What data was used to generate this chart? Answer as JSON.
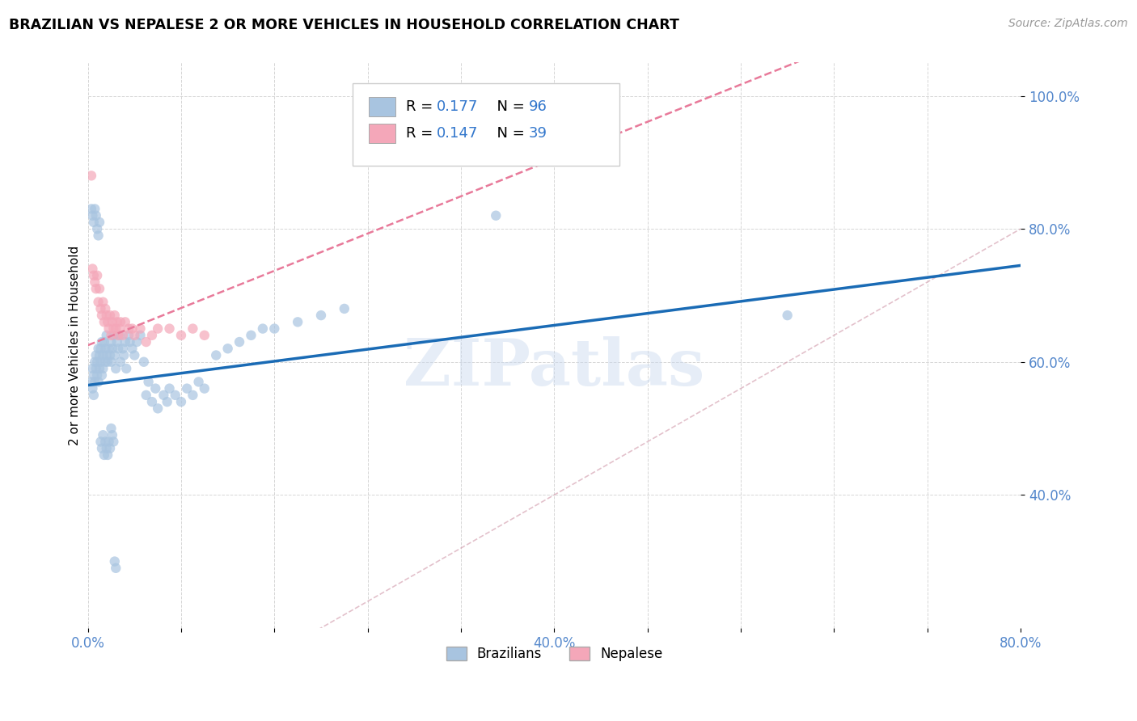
{
  "title": "BRAZILIAN VS NEPALESE 2 OR MORE VEHICLES IN HOUSEHOLD CORRELATION CHART",
  "source": "Source: ZipAtlas.com",
  "ylabel": "2 or more Vehicles in Household",
  "xlim": [
    0.0,
    0.8
  ],
  "ylim": [
    0.2,
    1.05
  ],
  "ytick_labels": [
    "40.0%",
    "60.0%",
    "80.0%",
    "100.0%"
  ],
  "ytick_values": [
    0.4,
    0.6,
    0.8,
    1.0
  ],
  "xtick_values": [
    0.0,
    0.08,
    0.16,
    0.24,
    0.32,
    0.4,
    0.48,
    0.56,
    0.64,
    0.72,
    0.8
  ],
  "color_brazilian": "#a8c4e0",
  "color_nepalese": "#f4a7b9",
  "color_line_brazilian": "#1a6bb5",
  "color_line_nepalese": "#e87a9a",
  "color_diag": "#d4a0b0",
  "watermark": "ZIPatlas",
  "braz_line_x0": 0.0,
  "braz_line_x1": 0.8,
  "braz_line_y0": 0.565,
  "braz_line_y1": 0.745,
  "nep_line_x0": 0.0,
  "nep_line_x1": 0.1,
  "nep_line_y0": 0.625,
  "nep_line_y1": 0.695,
  "brazilian_x": [
    0.003,
    0.004,
    0.004,
    0.005,
    0.005,
    0.006,
    0.006,
    0.007,
    0.007,
    0.008,
    0.008,
    0.009,
    0.009,
    0.01,
    0.01,
    0.011,
    0.011,
    0.012,
    0.012,
    0.013,
    0.013,
    0.014,
    0.015,
    0.015,
    0.016,
    0.016,
    0.017,
    0.018,
    0.019,
    0.02,
    0.02,
    0.021,
    0.022,
    0.023,
    0.024,
    0.025,
    0.026,
    0.027,
    0.028,
    0.03,
    0.031,
    0.032,
    0.033,
    0.035,
    0.036,
    0.038,
    0.04,
    0.042,
    0.045,
    0.048,
    0.05,
    0.052,
    0.055,
    0.058,
    0.06,
    0.065,
    0.068,
    0.07,
    0.075,
    0.08,
    0.085,
    0.09,
    0.095,
    0.1,
    0.11,
    0.12,
    0.13,
    0.14,
    0.15,
    0.16,
    0.18,
    0.2,
    0.22,
    0.35,
    0.6,
    0.003,
    0.004,
    0.005,
    0.006,
    0.007,
    0.008,
    0.009,
    0.01,
    0.011,
    0.012,
    0.013,
    0.014,
    0.015,
    0.016,
    0.017,
    0.018,
    0.019,
    0.02,
    0.021,
    0.022,
    0.023,
    0.024
  ],
  "brazilian_y": [
    0.57,
    0.56,
    0.59,
    0.55,
    0.58,
    0.6,
    0.57,
    0.59,
    0.61,
    0.58,
    0.6,
    0.57,
    0.62,
    0.59,
    0.61,
    0.6,
    0.62,
    0.58,
    0.63,
    0.59,
    0.61,
    0.63,
    0.6,
    0.62,
    0.61,
    0.64,
    0.6,
    0.62,
    0.61,
    0.63,
    0.6,
    0.62,
    0.64,
    0.61,
    0.59,
    0.63,
    0.62,
    0.64,
    0.6,
    0.62,
    0.61,
    0.63,
    0.59,
    0.64,
    0.63,
    0.62,
    0.61,
    0.63,
    0.64,
    0.6,
    0.55,
    0.57,
    0.54,
    0.56,
    0.53,
    0.55,
    0.54,
    0.56,
    0.55,
    0.54,
    0.56,
    0.55,
    0.57,
    0.56,
    0.61,
    0.62,
    0.63,
    0.64,
    0.65,
    0.65,
    0.66,
    0.67,
    0.68,
    0.82,
    0.67,
    0.83,
    0.82,
    0.81,
    0.83,
    0.82,
    0.8,
    0.79,
    0.81,
    0.48,
    0.47,
    0.49,
    0.46,
    0.48,
    0.47,
    0.46,
    0.48,
    0.47,
    0.5,
    0.49,
    0.48,
    0.3,
    0.29
  ],
  "nepalese_x": [
    0.003,
    0.004,
    0.005,
    0.006,
    0.007,
    0.008,
    0.009,
    0.01,
    0.011,
    0.012,
    0.013,
    0.014,
    0.015,
    0.016,
    0.017,
    0.018,
    0.019,
    0.02,
    0.021,
    0.022,
    0.023,
    0.024,
    0.025,
    0.026,
    0.027,
    0.028,
    0.03,
    0.032,
    0.035,
    0.038,
    0.04,
    0.045,
    0.05,
    0.055,
    0.06,
    0.07,
    0.08,
    0.09,
    0.1
  ],
  "nepalese_y": [
    0.88,
    0.74,
    0.73,
    0.72,
    0.71,
    0.73,
    0.69,
    0.71,
    0.68,
    0.67,
    0.69,
    0.66,
    0.68,
    0.67,
    0.66,
    0.65,
    0.67,
    0.64,
    0.66,
    0.65,
    0.67,
    0.65,
    0.66,
    0.64,
    0.65,
    0.66,
    0.64,
    0.66,
    0.65,
    0.65,
    0.64,
    0.65,
    0.63,
    0.64,
    0.65,
    0.65,
    0.64,
    0.65,
    0.64
  ]
}
